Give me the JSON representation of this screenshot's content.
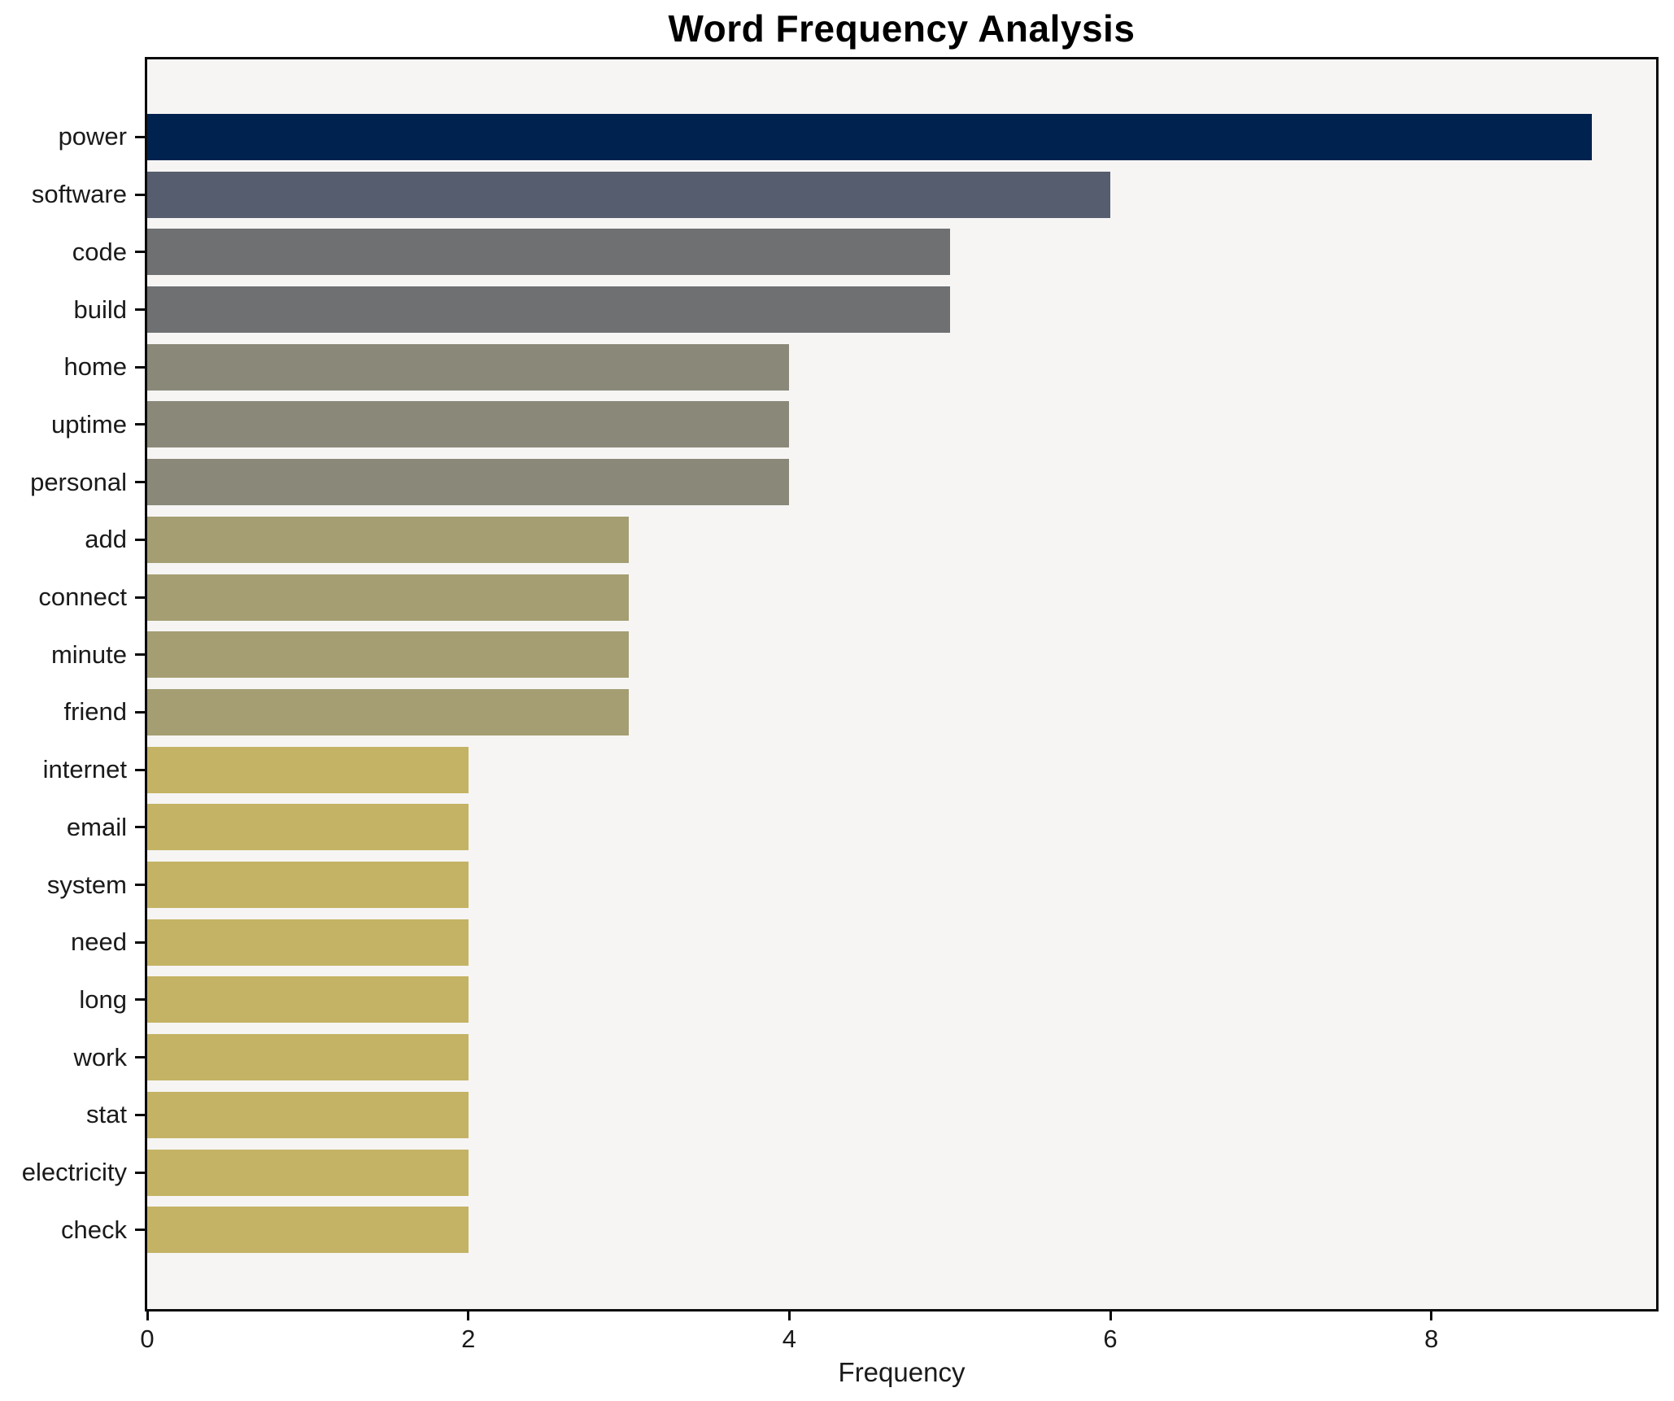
{
  "chart_data": {
    "type": "bar",
    "orientation": "horizontal",
    "title": "Word Frequency Analysis",
    "xlabel": "Frequency",
    "ylabel": "",
    "categories": [
      "power",
      "software",
      "code",
      "build",
      "home",
      "uptime",
      "personal",
      "add",
      "connect",
      "minute",
      "friend",
      "internet",
      "email",
      "system",
      "need",
      "long",
      "work",
      "stat",
      "electricity",
      "check"
    ],
    "values": [
      9,
      6,
      5,
      5,
      4,
      4,
      4,
      3,
      3,
      3,
      3,
      2,
      2,
      2,
      2,
      2,
      2,
      2,
      2,
      2
    ],
    "bar_colors": [
      "#00224e",
      "#565d6e",
      "#6e7072",
      "#6e7072",
      "#8a8878",
      "#8a8878",
      "#8a8878",
      "#a49e72",
      "#a49e72",
      "#a49e72",
      "#a49e72",
      "#c4b364",
      "#c4b364",
      "#c4b364",
      "#c4b364",
      "#c4b364",
      "#c4b364",
      "#c4b364",
      "#c4b364",
      "#c4b364"
    ],
    "xlim": [
      0,
      9.4
    ],
    "xticks": [
      0,
      2,
      4,
      6,
      8
    ],
    "grid": false,
    "legend": false,
    "plot_background": "#f6f5f4",
    "outer_background": "#ffffff",
    "spine_color": "#0a0a0a",
    "text_color": "#1a1a1a"
  }
}
